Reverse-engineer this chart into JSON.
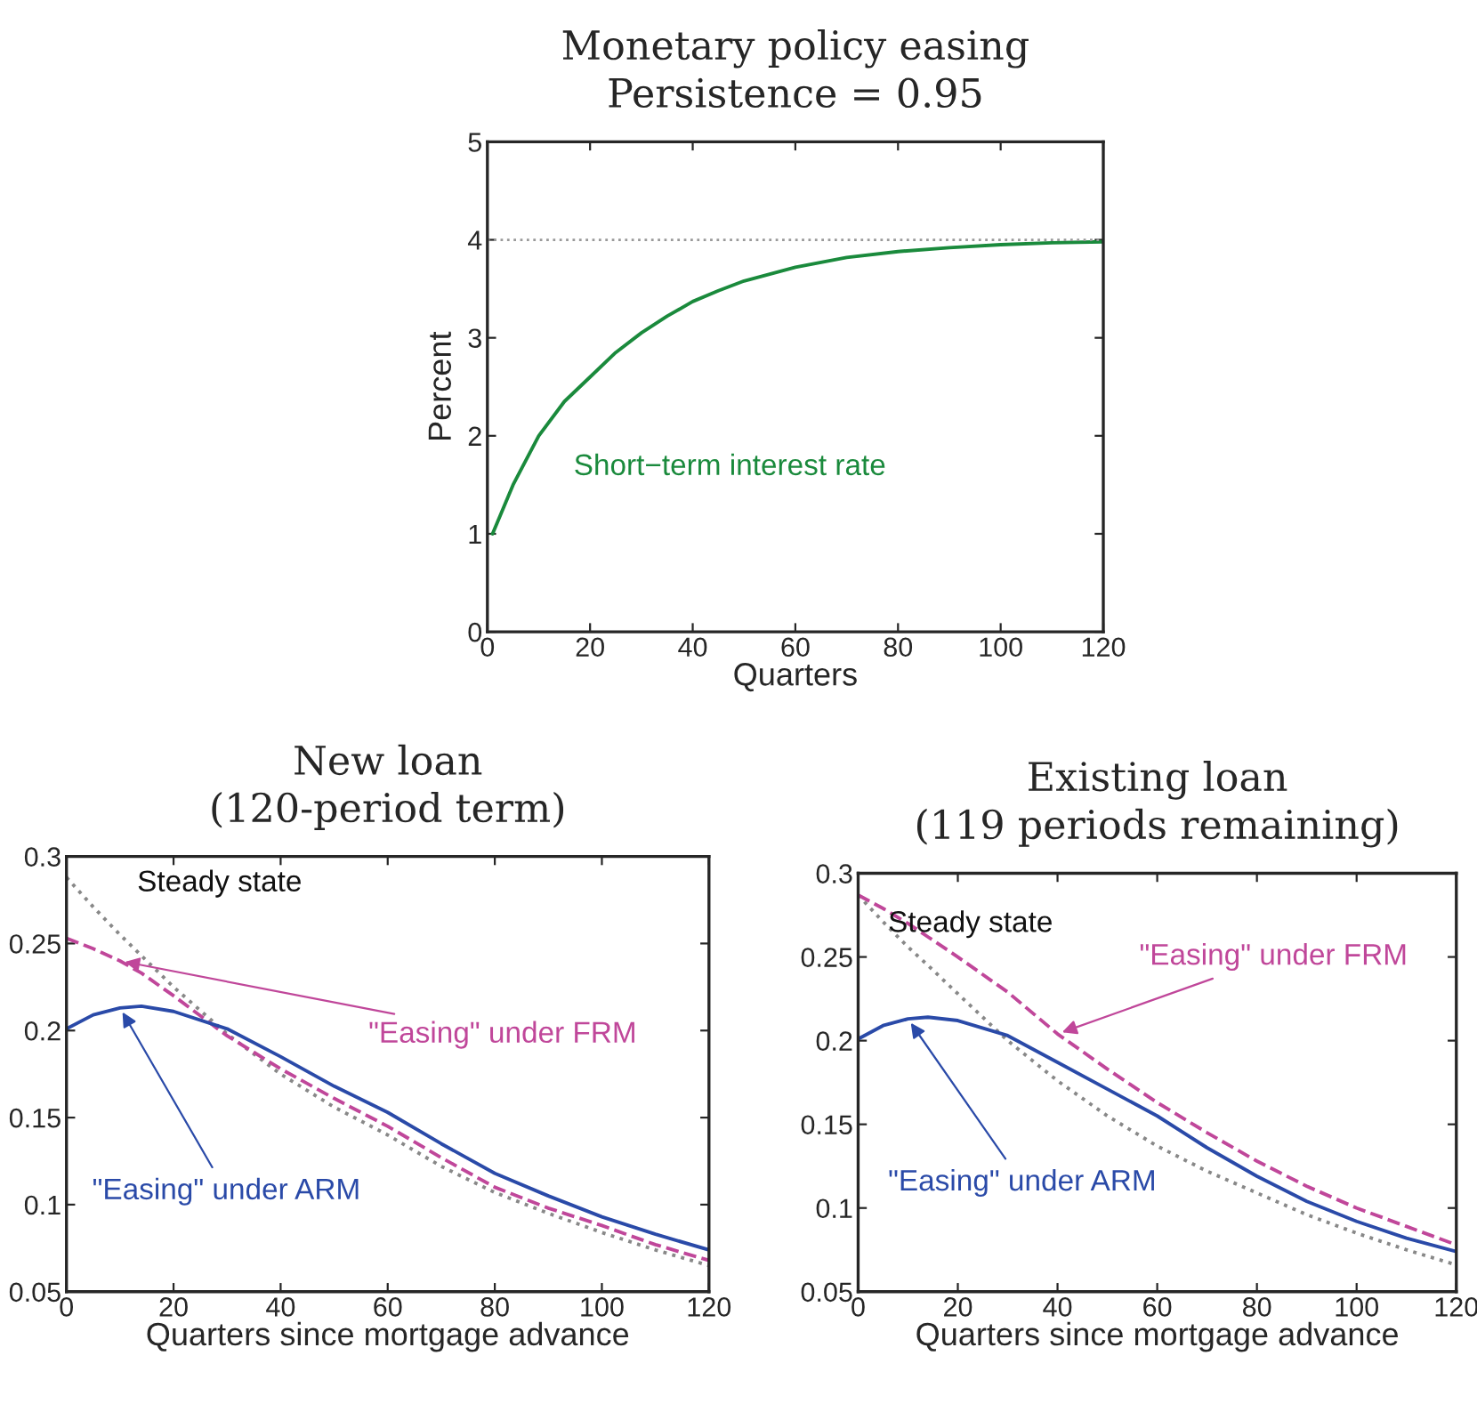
{
  "chart_data": [
    {
      "type": "line",
      "title": "Monetary policy easing\nPersistence = 0.95",
      "xlabel": "Quarters",
      "ylabel": "Percent",
      "xlim": [
        0,
        120
      ],
      "ylim": [
        0,
        5
      ],
      "xticks": [
        0,
        20,
        40,
        60,
        80,
        100,
        120
      ],
      "yticks": [
        0,
        1,
        2,
        3,
        4,
        5
      ],
      "grid": false,
      "legend": false,
      "x": [
        1,
        5,
        10,
        15,
        20,
        25,
        30,
        35,
        40,
        45,
        50,
        55,
        60,
        70,
        80,
        90,
        100,
        110,
        120
      ],
      "series": [
        {
          "name": "Short−term interest rate",
          "color": "#1a8a3c",
          "line_style": "solid",
          "values": [
            1.0,
            1.5,
            2.0,
            2.35,
            2.6,
            2.85,
            3.05,
            3.22,
            3.37,
            3.48,
            3.58,
            3.65,
            3.72,
            3.82,
            3.88,
            3.92,
            3.95,
            3.97,
            3.98
          ]
        }
      ],
      "ref_lines": [
        {
          "axis": "y",
          "value": 4,
          "color": "#999999",
          "line_style": "dotted"
        }
      ]
    },
    {
      "type": "line",
      "title": "New loan\n(120-period term)",
      "xlabel": "Quarters since mortgage advance",
      "xlim": [
        0,
        120
      ],
      "ylim": [
        0.05,
        0.3
      ],
      "xticks": [
        0,
        20,
        40,
        60,
        80,
        100,
        120
      ],
      "yticks": [
        0.05,
        0.1,
        0.15,
        0.2,
        0.25,
        0.3
      ],
      "grid": false,
      "legend": false,
      "x": [
        0,
        5,
        10,
        14,
        20,
        30,
        40,
        50,
        60,
        70,
        80,
        90,
        100,
        110,
        120
      ],
      "series": [
        {
          "name": "Steady state",
          "color": "#888888",
          "line_style": "dotted",
          "values": [
            0.288,
            0.271,
            0.255,
            0.243,
            0.225,
            0.198,
            0.175,
            0.156,
            0.14,
            0.122,
            0.107,
            0.095,
            0.084,
            0.074,
            0.065
          ]
        },
        {
          "name": "\"Easing\" under FRM",
          "color": "#c0479a",
          "line_style": "dashed",
          "values": [
            0.253,
            0.247,
            0.24,
            0.233,
            0.22,
            0.197,
            0.178,
            0.161,
            0.145,
            0.127,
            0.11,
            0.098,
            0.088,
            0.077,
            0.068
          ]
        },
        {
          "name": "\"Easing\" under ARM",
          "color": "#2a4aa8",
          "line_style": "solid",
          "values": [
            0.201,
            0.209,
            0.213,
            0.214,
            0.211,
            0.201,
            0.185,
            0.168,
            0.153,
            0.135,
            0.118,
            0.105,
            0.093,
            0.083,
            0.074
          ]
        }
      ]
    },
    {
      "type": "line",
      "title": "Existing loan\n(119 periods remaining)",
      "xlabel": "Quarters since mortgage advance",
      "xlim": [
        0,
        120
      ],
      "ylim": [
        0.05,
        0.3
      ],
      "xticks": [
        0,
        20,
        40,
        60,
        80,
        100,
        120
      ],
      "yticks": [
        0.05,
        0.1,
        0.15,
        0.2,
        0.25,
        0.3
      ],
      "grid": false,
      "legend": false,
      "x": [
        0,
        5,
        10,
        14,
        20,
        30,
        40,
        50,
        60,
        70,
        80,
        90,
        100,
        110,
        120
      ],
      "series": [
        {
          "name": "Steady state",
          "color": "#888888",
          "line_style": "dotted",
          "values": [
            0.287,
            0.271,
            0.256,
            0.245,
            0.228,
            0.2,
            0.176,
            0.155,
            0.137,
            0.122,
            0.109,
            0.096,
            0.085,
            0.075,
            0.066
          ]
        },
        {
          "name": "\"Easing\" under FRM",
          "color": "#c0479a",
          "line_style": "dashed",
          "values": [
            0.287,
            0.279,
            0.27,
            0.262,
            0.25,
            0.229,
            0.204,
            0.183,
            0.163,
            0.145,
            0.128,
            0.113,
            0.1,
            0.089,
            0.078
          ]
        },
        {
          "name": "\"Easing\" under ARM",
          "color": "#2a4aa8",
          "line_style": "solid",
          "values": [
            0.201,
            0.209,
            0.213,
            0.214,
            0.212,
            0.203,
            0.187,
            0.171,
            0.155,
            0.136,
            0.119,
            0.104,
            0.092,
            0.082,
            0.074
          ]
        }
      ]
    }
  ]
}
